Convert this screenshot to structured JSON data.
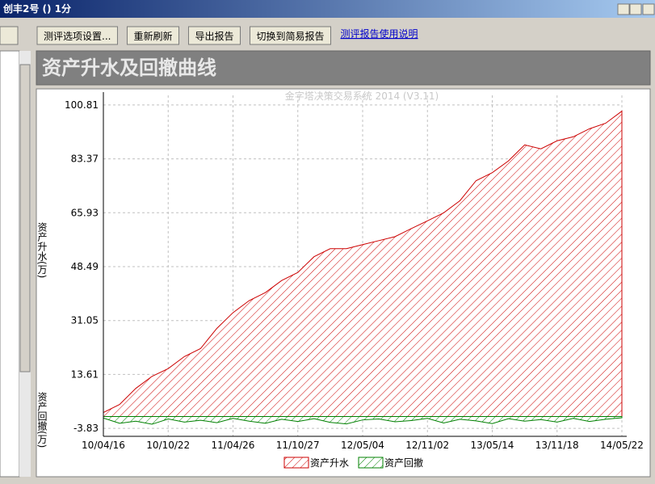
{
  "window": {
    "title": "创丰2号 () 1分"
  },
  "toolbar": {
    "buttons": [
      "测评选项设置...",
      "重新刷新",
      "导出报告",
      "切换到简易报告"
    ],
    "link": "测评报告使用说明"
  },
  "panel": {
    "title": "资产升水及回撤曲线"
  },
  "chart_data": {
    "type": "area",
    "watermark": "金字塔决策交易系统 2014 (V3.11)",
    "ylabel_top": "资产升水(万)",
    "ylabel_bottom": "资产回撤(万)",
    "categories": [
      "10/04/16",
      null,
      null,
      null,
      "10/10/22",
      null,
      null,
      null,
      "11/04/26",
      null,
      null,
      null,
      "11/10/27",
      null,
      null,
      null,
      "12/05/04",
      null,
      null,
      null,
      "12/11/02",
      null,
      null,
      null,
      "13/05/14",
      null,
      null,
      null,
      "13/11/18",
      null,
      null,
      null,
      "14/05/22"
    ],
    "series": [
      {
        "name": "资产升水",
        "color": "#cc0000",
        "values": [
          1.3,
          3.9,
          9.1,
          13,
          15.5,
          19.4,
          22,
          28.5,
          33.6,
          37.5,
          40.1,
          44,
          46.6,
          51.7,
          54.3,
          54.3,
          55.6,
          56.9,
          58.2,
          60.8,
          63.3,
          65.9,
          69.8,
          76.3,
          78.9,
          82.7,
          87.9,
          86.6,
          89.2,
          90.5,
          93.1,
          94.9,
          98.8
        ]
      },
      {
        "name": "资产回撤",
        "color": "#008000",
        "values": [
          -0.5,
          -2.2,
          -1.5,
          -2.5,
          -0.8,
          -1.8,
          -1.2,
          -2.0,
          -0.6,
          -1.5,
          -2.2,
          -0.9,
          -1.6,
          -0.7,
          -1.9,
          -2.4,
          -1.1,
          -0.8,
          -1.7,
          -1.3,
          -0.6,
          -2.1,
          -0.9,
          -1.4,
          -2.3,
          -0.7,
          -1.5,
          -1.0,
          -1.8,
          -0.6,
          -1.6,
          -0.9,
          -0.4
        ]
      }
    ],
    "ylim": [
      -6.41,
      103.91
    ],
    "yticks": [
      -3.83,
      13.61,
      31.05,
      48.49,
      65.93,
      83.37,
      100.81
    ],
    "grid": true
  }
}
